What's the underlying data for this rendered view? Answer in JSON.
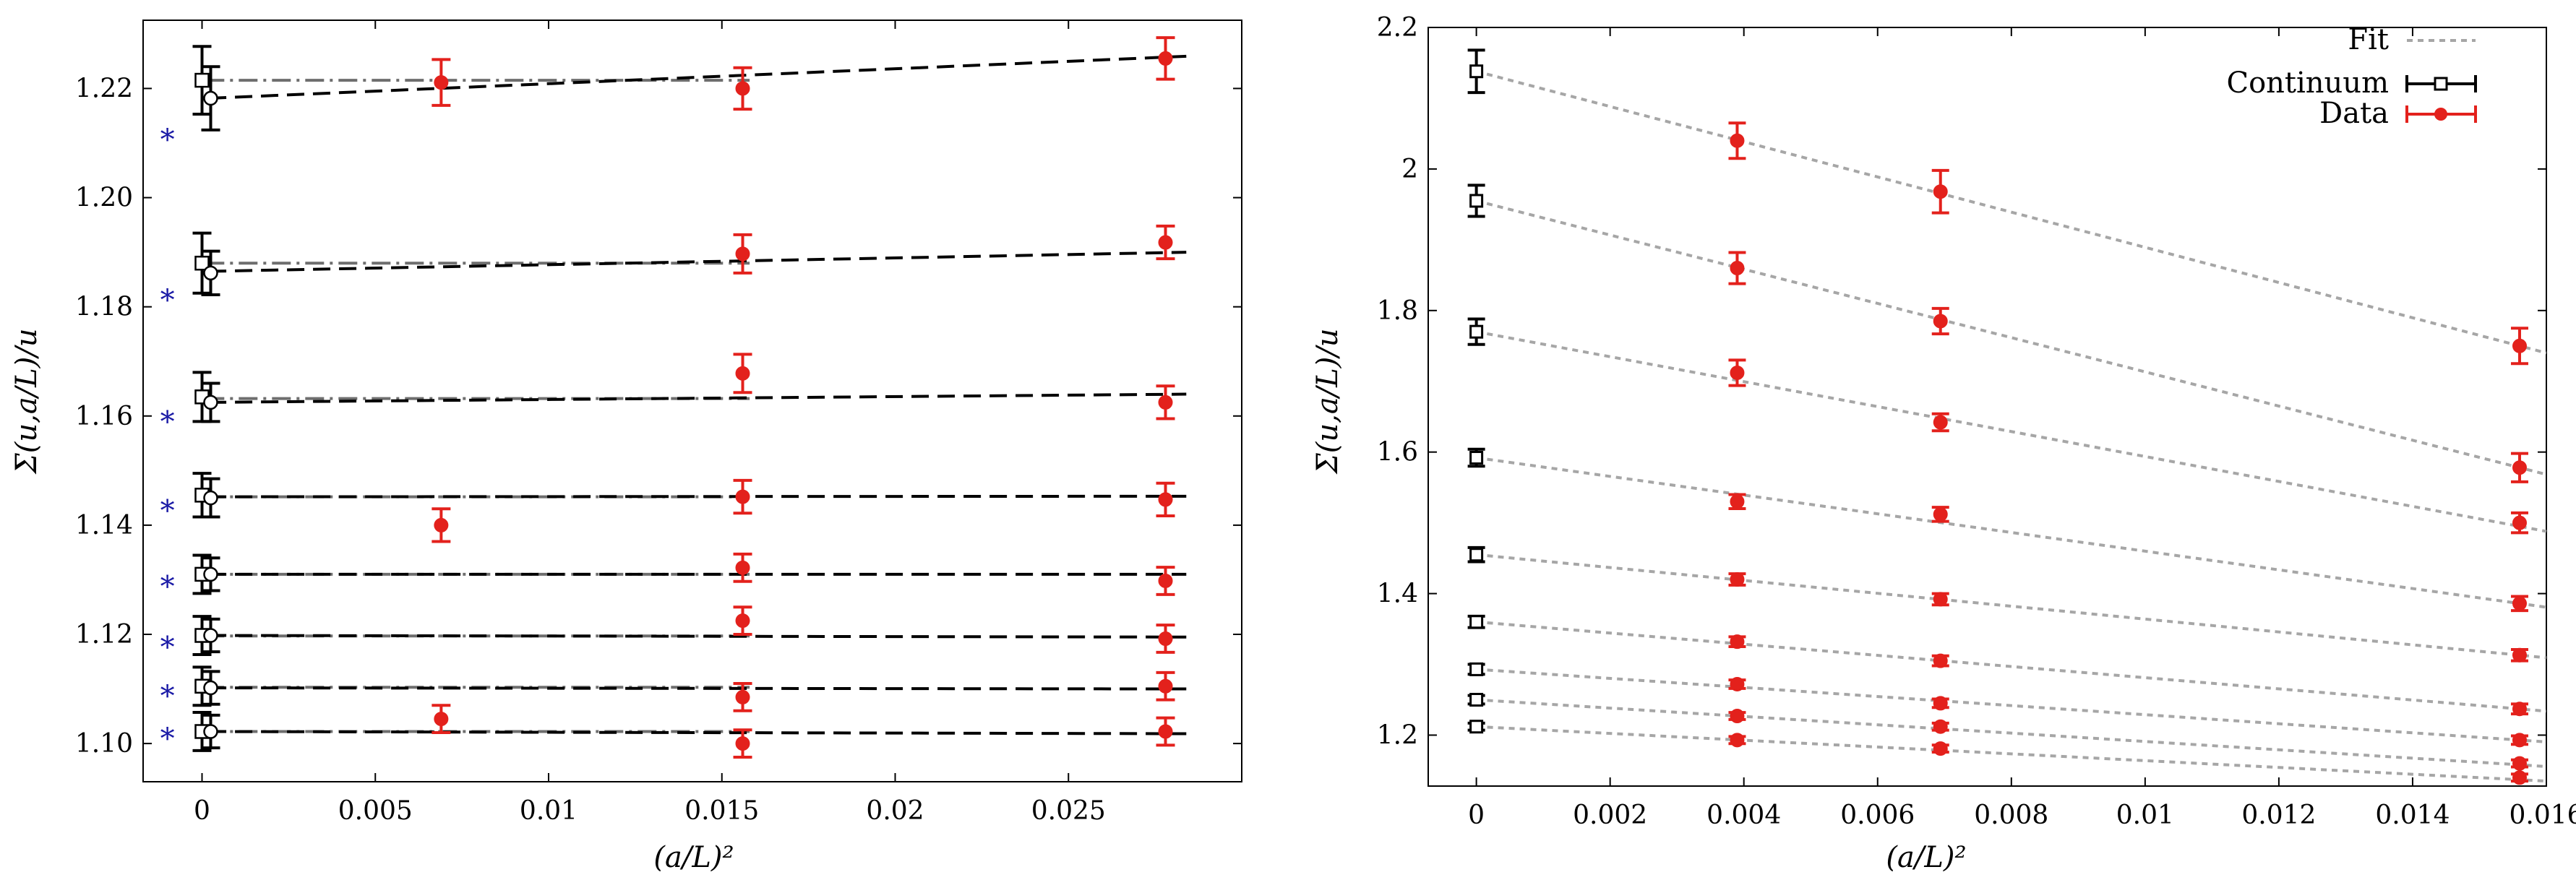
{
  "colors": {
    "data": "#e3211c",
    "continuum": "#000000",
    "fit": "#a6a6a6",
    "star": "#1a1aa6",
    "axis": "#000000"
  },
  "chart_data": [
    {
      "type": "scatter",
      "title": "",
      "xlabel": "(a/L)²",
      "ylabel": "Σ(u,a/L)/u",
      "xlim": [
        -0.0017,
        0.03
      ],
      "ylim": [
        1.093,
        1.2325
      ],
      "xticks": [
        0,
        0.005,
        0.01,
        0.015,
        0.02,
        0.025
      ],
      "xtick_labels": [
        "0",
        "0.005",
        "0.01",
        "0.015",
        "0.02",
        "0.025"
      ],
      "yticks": [
        1.1,
        1.12,
        1.14,
        1.16,
        1.18,
        1.2,
        1.22
      ],
      "ytick_labels": [
        "1.10",
        "1.12",
        "1.14",
        "1.16",
        "1.18",
        "1.20",
        "1.22"
      ],
      "star_x": -0.001,
      "continuum_x_square": 0.0,
      "continuum_x_circle": 0.00025,
      "series": [
        {
          "data": [
            [
              0.0069,
              1.2211,
              0.0042
            ],
            [
              0.0156,
              1.22,
              0.0038
            ],
            [
              0.0278,
              1.2255,
              0.0038
            ]
          ],
          "square": [
            1.2215,
            0.0062
          ],
          "circle": [
            1.2182,
            0.0058
          ],
          "const_fit": 1.2215,
          "lin_fit": [
            1.2182,
            1.2259
          ],
          "star": 1.2112
        },
        {
          "data": [
            [
              0.0156,
              1.1897,
              0.0035
            ],
            [
              0.0278,
              1.1918,
              0.003
            ]
          ],
          "square": [
            1.188,
            0.0055
          ],
          "circle": [
            1.1862,
            0.004
          ],
          "const_fit": 1.188,
          "lin_fit": [
            1.1865,
            1.19
          ],
          "star": 1.1818
        },
        {
          "data": [
            [
              0.0156,
              1.1678,
              0.0035
            ],
            [
              0.0278,
              1.1625,
              0.003
            ]
          ],
          "square": [
            1.1635,
            0.0045
          ],
          "circle": [
            1.1625,
            0.0035
          ],
          "const_fit": 1.1632,
          "lin_fit": [
            1.1625,
            1.164
          ],
          "star": 1.1595
        },
        {
          "data": [
            [
              0.0069,
              1.14,
              0.003
            ],
            [
              0.0156,
              1.1452,
              0.003
            ],
            [
              0.0278,
              1.1447,
              0.003
            ]
          ],
          "square": [
            1.1455,
            0.004
          ],
          "circle": [
            1.145,
            0.0035
          ],
          "const_fit": 1.1452,
          "lin_fit": [
            1.1452,
            1.1453
          ],
          "star": 1.1432
        },
        {
          "data": [
            [
              0.0156,
              1.1322,
              0.0025
            ],
            [
              0.0278,
              1.1298,
              0.0025
            ]
          ],
          "square": [
            1.131,
            0.0035
          ],
          "circle": [
            1.131,
            0.003
          ],
          "const_fit": 1.131,
          "lin_fit": [
            1.131,
            1.131
          ],
          "star": 1.1293
        },
        {
          "data": [
            [
              0.0156,
              1.1225,
              0.0025
            ],
            [
              0.0278,
              1.1192,
              0.0025
            ]
          ],
          "square": [
            1.1198,
            0.0035
          ],
          "circle": [
            1.1198,
            0.003
          ],
          "const_fit": 1.1197,
          "lin_fit": [
            1.1198,
            1.1195
          ],
          "star": 1.1182
        },
        {
          "data": [
            [
              0.0156,
              1.1085,
              0.0025
            ],
            [
              0.0278,
              1.1105,
              0.0025
            ]
          ],
          "square": [
            1.1105,
            0.0035
          ],
          "circle": [
            1.1102,
            0.003
          ],
          "const_fit": 1.1103,
          "lin_fit": [
            1.1102,
            1.11
          ],
          "star": 1.1093
        },
        {
          "data": [
            [
              0.0069,
              1.1045,
              0.0025
            ],
            [
              0.0156,
              1.1,
              0.0025
            ],
            [
              0.0278,
              1.1022,
              0.0025
            ]
          ],
          "square": [
            1.1022,
            0.0035
          ],
          "circle": [
            1.1022,
            0.003
          ],
          "const_fit": 1.1022,
          "lin_fit": [
            1.1022,
            1.1018
          ],
          "star": 1.1015
        }
      ]
    },
    {
      "type": "scatter",
      "title": "",
      "xlabel": "(a/L)²",
      "ylabel": "Σ(u,a/L)/u",
      "xlim": [
        -0.00072,
        0.016
      ],
      "ylim": [
        1.128,
        2.2
      ],
      "xticks": [
        0,
        0.002,
        0.004,
        0.006,
        0.008,
        0.01,
        0.012,
        0.014,
        0.016
      ],
      "xtick_labels": [
        "0",
        "0.002",
        "0.004",
        "0.006",
        "0.008",
        "0.01",
        "0.012",
        "0.014",
        "0.016"
      ],
      "yticks": [
        1.2,
        1.4,
        1.6,
        1.8,
        2.0,
        2.2
      ],
      "ytick_labels": [
        "1.2",
        "1.4",
        "1.6",
        "1.8",
        "2",
        "2.2"
      ],
      "legend": {
        "position": "top-right",
        "entries": [
          "Fit",
          "Continuum",
          "Data"
        ]
      },
      "data_x": [
        0.0039,
        0.00694,
        0.0156
      ],
      "series": [
        {
          "continuum": [
            2.138,
            0.03
          ],
          "data": [
            [
              2.04,
              0.025
            ],
            [
              1.968,
              0.03
            ],
            [
              1.75,
              0.025
            ]
          ],
          "fit_end": 1.75
        },
        {
          "continuum": [
            1.955,
            0.022
          ],
          "data": [
            [
              1.86,
              0.022
            ],
            [
              1.785,
              0.018
            ],
            [
              1.578,
              0.02
            ]
          ],
          "fit_end": 1.578
        },
        {
          "continuum": [
            1.77,
            0.018
          ],
          "data": [
            [
              1.712,
              0.018
            ],
            [
              1.642,
              0.012
            ],
            [
              1.5,
              0.014
            ]
          ],
          "fit_end": 1.495
        },
        {
          "continuum": [
            1.592,
            0.012
          ],
          "data": [
            [
              1.53,
              0.01
            ],
            [
              1.512,
              0.01
            ],
            [
              1.386,
              0.01
            ]
          ],
          "fit_end": 1.386
        },
        {
          "continuum": [
            1.455,
            0.01
          ],
          "data": [
            [
              1.42,
              0.008
            ],
            [
              1.392,
              0.008
            ],
            [
              1.313,
              0.008
            ]
          ],
          "fit_end": 1.313
        },
        {
          "continuum": [
            1.36,
            0.008
          ],
          "data": [
            [
              1.332,
              0.007
            ],
            [
              1.305,
              0.007
            ],
            [
              1.237,
              0.007
            ]
          ],
          "fit_end": 1.237
        },
        {
          "continuum": [
            1.293,
            0.007
          ],
          "data": [
            [
              1.272,
              0.006
            ],
            [
              1.245,
              0.006
            ],
            [
              1.193,
              0.006
            ]
          ],
          "fit_end": 1.193
        },
        {
          "continuum": [
            1.25,
            0.006
          ],
          "data": [
            [
              1.227,
              0.005
            ],
            [
              1.212,
              0.005
            ],
            [
              1.16,
              0.005
            ]
          ],
          "fit_end": 1.158
        },
        {
          "continuum": [
            1.212,
            0.005
          ],
          "data": [
            [
              1.193,
              0.005
            ],
            [
              1.181,
              0.005
            ],
            [
              1.14,
              0.005
            ]
          ],
          "fit_end": 1.137
        }
      ]
    }
  ]
}
